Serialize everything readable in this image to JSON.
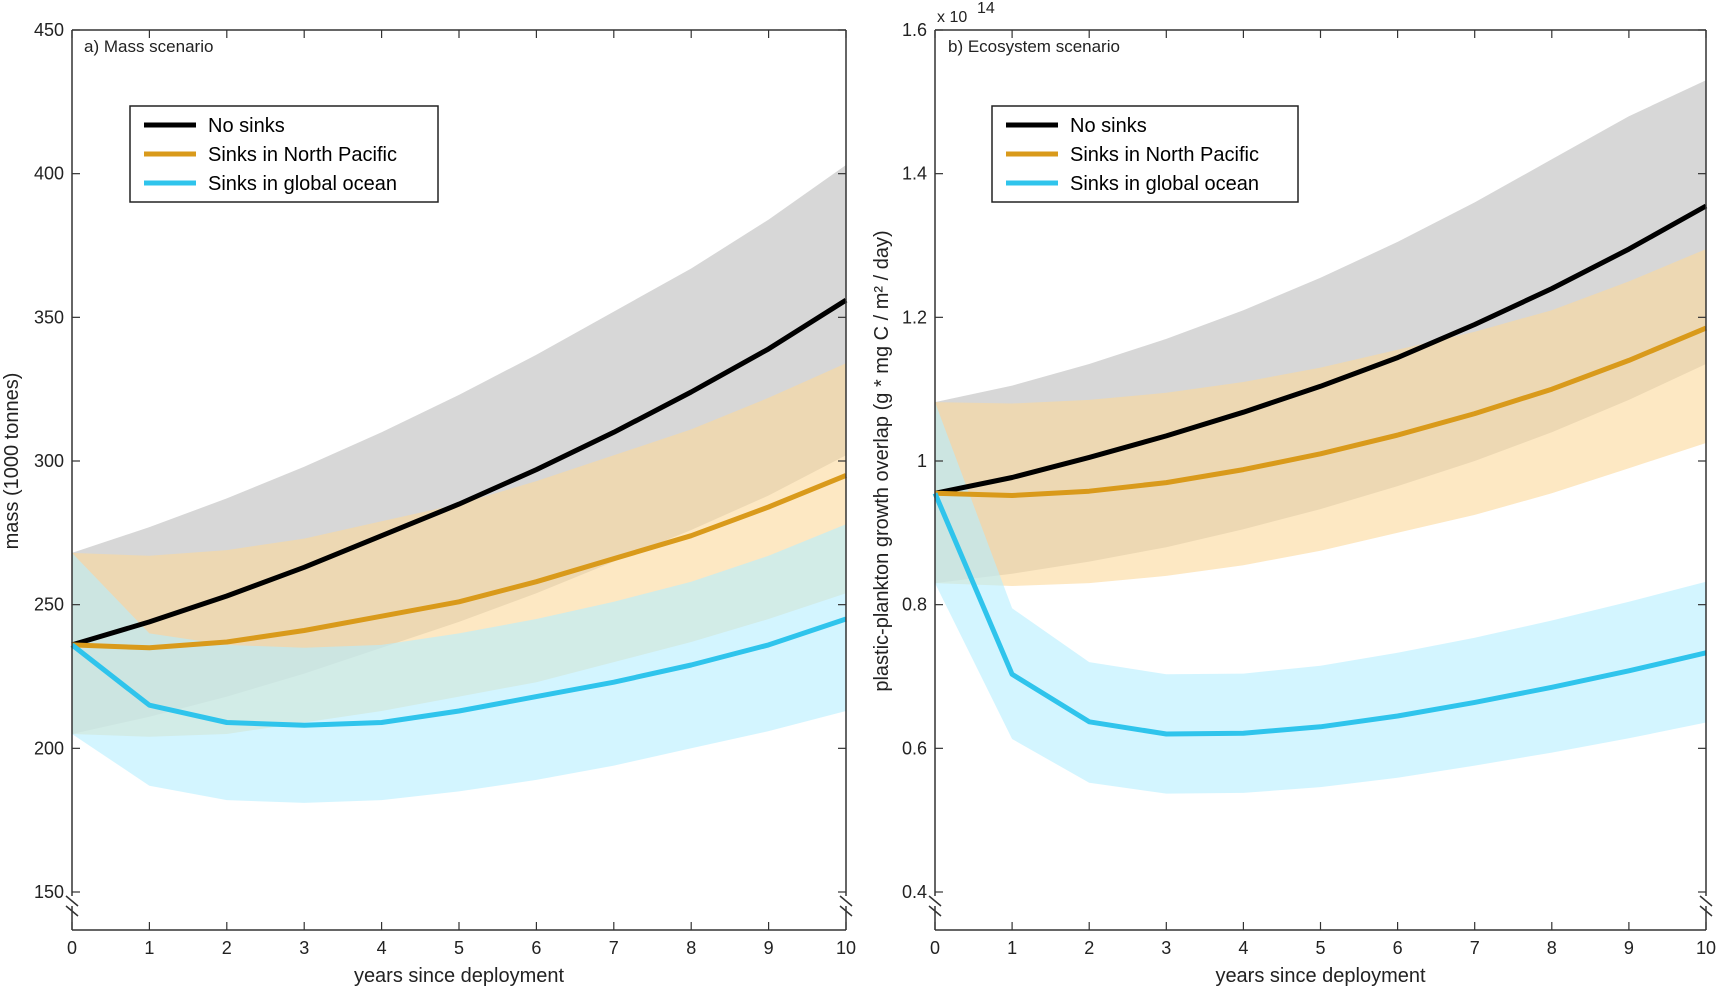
{
  "chart_data": [
    {
      "type": "line",
      "title": "a) Mass scenario",
      "xlabel": "years since deployment",
      "ylabel": "mass (1000 tonnes)",
      "xlim": [
        0,
        10
      ],
      "ylim": [
        150,
        450
      ],
      "x_ticks": [
        0,
        1,
        2,
        3,
        4,
        5,
        6,
        7,
        8,
        9,
        10
      ],
      "y_ticks": [
        150,
        200,
        250,
        300,
        350,
        400,
        450
      ],
      "y_tick_labels": [
        "150",
        "200",
        "250",
        "300",
        "350",
        "400",
        "450"
      ],
      "axis_break": "bottom",
      "grid": false,
      "legend": {
        "position": "top-left",
        "entries": [
          "No sinks",
          "Sinks in North Pacific",
          "Sinks in global ocean"
        ]
      },
      "x": [
        0,
        1,
        2,
        3,
        4,
        5,
        6,
        7,
        8,
        9,
        10
      ],
      "series": [
        {
          "name": "No sinks",
          "color": "#000000",
          "band_color": "#bdbdbd",
          "values": [
            236,
            244,
            253,
            263,
            274,
            285,
            297,
            310,
            324,
            339,
            356
          ],
          "band_upper": [
            268,
            277,
            287,
            298,
            310,
            323,
            337,
            352,
            367,
            384,
            403
          ],
          "band_lower": [
            205,
            211,
            218,
            226,
            235,
            244,
            254,
            265,
            276,
            288,
            302
          ]
        },
        {
          "name": "Sinks in North Pacific",
          "color": "#d99a1b",
          "band_color": "#fcd99b",
          "values": [
            236,
            235,
            237,
            241,
            246,
            251,
            258,
            266,
            274,
            284,
            295
          ],
          "band_upper": [
            268,
            267,
            269,
            273,
            279,
            285,
            293,
            302,
            311,
            322,
            334
          ],
          "band_lower": [
            205,
            204,
            205,
            209,
            213,
            218,
            223,
            230,
            237,
            245,
            254
          ]
        },
        {
          "name": "Sinks in global ocean",
          "color": "#2fc4ec",
          "band_color": "#b6efff",
          "values": [
            236,
            215,
            209,
            208,
            209,
            213,
            218,
            223,
            229,
            236,
            245
          ],
          "band_upper": [
            268,
            240,
            236,
            235,
            236,
            240,
            245,
            251,
            258,
            267,
            278
          ],
          "band_lower": [
            205,
            187,
            182,
            181,
            182,
            185,
            189,
            194,
            200,
            206,
            213
          ]
        }
      ]
    },
    {
      "type": "line",
      "title": "b) Ecosystem scenario",
      "xlabel": "years since deployment",
      "ylabel": "plastic-plankton growth overlap (g * mg C / m² / day)",
      "y_multiplier": "x 10",
      "y_exponent": "14",
      "xlim": [
        0,
        10
      ],
      "ylim": [
        0.4,
        1.6
      ],
      "x_ticks": [
        0,
        1,
        2,
        3,
        4,
        5,
        6,
        7,
        8,
        9,
        10
      ],
      "y_ticks": [
        0.4,
        0.6,
        0.8,
        1.0,
        1.2,
        1.4,
        1.6
      ],
      "y_tick_labels": [
        "0.4",
        "0.6",
        "0.8",
        "1",
        "1.2",
        "1.4",
        "1.6"
      ],
      "axis_break": "bottom",
      "grid": false,
      "legend": {
        "position": "top-left",
        "entries": [
          "No sinks",
          "Sinks in North Pacific",
          "Sinks in global ocean"
        ]
      },
      "x": [
        0,
        1,
        2,
        3,
        4,
        5,
        6,
        7,
        8,
        9,
        10
      ],
      "series": [
        {
          "name": "No sinks",
          "color": "#000000",
          "band_color": "#bdbdbd",
          "values": [
            0.955,
            0.977,
            1.005,
            1.035,
            1.068,
            1.104,
            1.144,
            1.19,
            1.24,
            1.295,
            1.355
          ],
          "band_upper": [
            1.082,
            1.105,
            1.135,
            1.17,
            1.21,
            1.255,
            1.305,
            1.36,
            1.42,
            1.48,
            1.53
          ],
          "band_lower": [
            0.83,
            0.843,
            0.86,
            0.88,
            0.905,
            0.933,
            0.965,
            1.0,
            1.04,
            1.085,
            1.135
          ]
        },
        {
          "name": "Sinks in North Pacific",
          "color": "#d99a1b",
          "band_color": "#fcd99b",
          "values": [
            0.955,
            0.952,
            0.958,
            0.97,
            0.988,
            1.01,
            1.036,
            1.066,
            1.1,
            1.14,
            1.185
          ],
          "band_upper": [
            1.082,
            1.08,
            1.085,
            1.095,
            1.11,
            1.13,
            1.155,
            1.18,
            1.21,
            1.25,
            1.295
          ],
          "band_lower": [
            0.83,
            0.826,
            0.83,
            0.84,
            0.855,
            0.875,
            0.9,
            0.925,
            0.955,
            0.99,
            1.025
          ]
        },
        {
          "name": "Sinks in global ocean",
          "color": "#2fc4ec",
          "band_color": "#b6efff",
          "values": [
            0.955,
            0.703,
            0.637,
            0.62,
            0.621,
            0.63,
            0.645,
            0.664,
            0.685,
            0.708,
            0.733
          ],
          "band_upper": [
            1.082,
            0.795,
            0.72,
            0.703,
            0.704,
            0.715,
            0.733,
            0.754,
            0.778,
            0.804,
            0.832
          ],
          "band_lower": [
            0.83,
            0.613,
            0.552,
            0.537,
            0.538,
            0.546,
            0.559,
            0.576,
            0.594,
            0.614,
            0.636
          ]
        }
      ]
    }
  ]
}
